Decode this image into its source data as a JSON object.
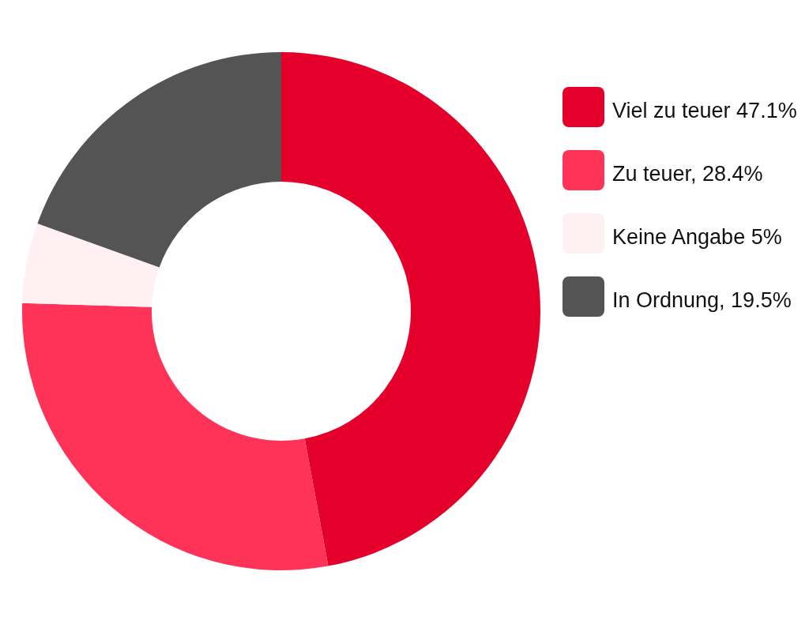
{
  "chart_data": {
    "type": "donut",
    "categories": [
      "Viel zu teuer 47.1%",
      "Zu teuer, 28.4%",
      "Keine Angabe 5%",
      "In Ordnung, 19.5%"
    ],
    "values": [
      47.1,
      28.4,
      5,
      19.5
    ],
    "colors": [
      "#e4002b",
      "#ff3358",
      "#fff0f3",
      "#545454"
    ],
    "legend": "right"
  }
}
